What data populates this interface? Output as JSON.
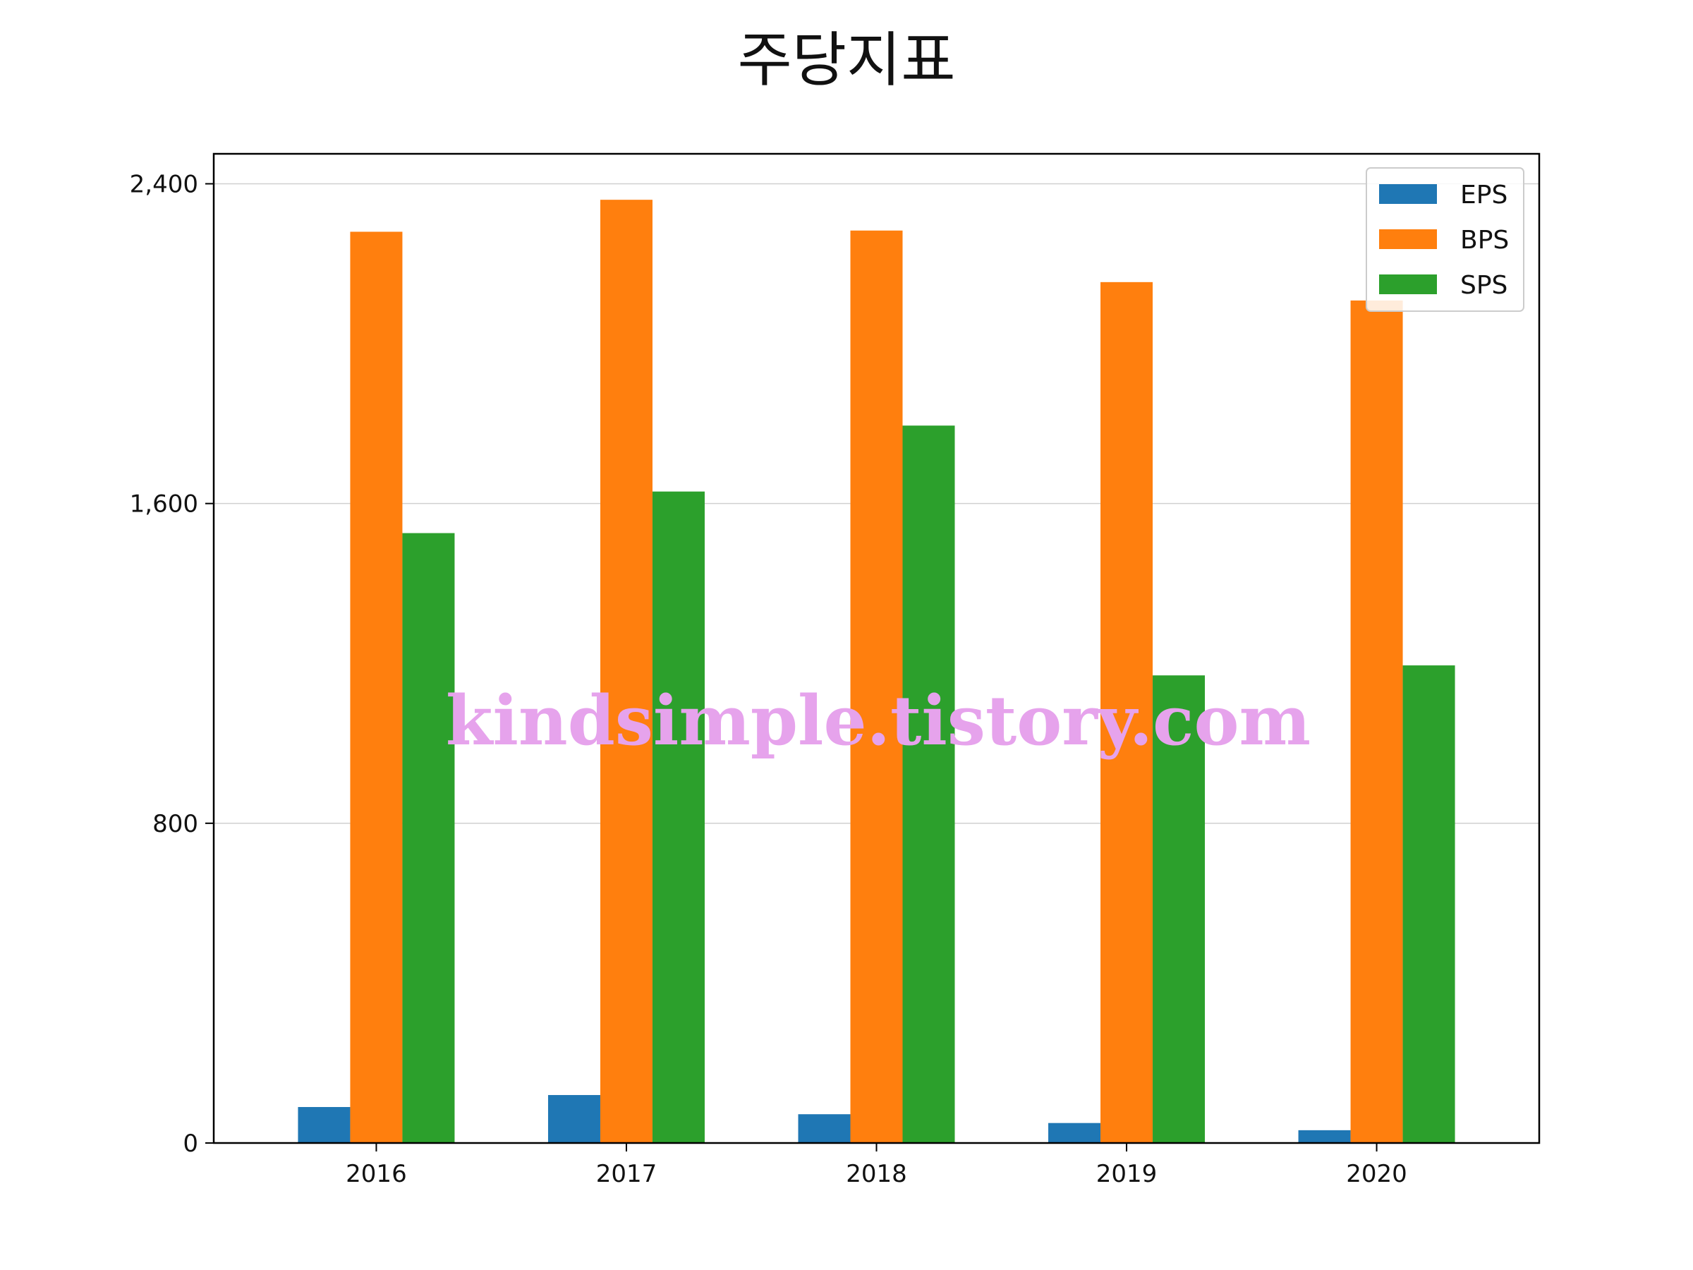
{
  "chart_data": {
    "type": "bar",
    "title": "주당지표",
    "xlabel": "",
    "ylabel": "",
    "categories": [
      "2016",
      "2017",
      "2018",
      "2019",
      "2020"
    ],
    "series": [
      {
        "name": "EPS",
        "color": "#1f77b4",
        "values": [
          90,
          120,
          72,
          50,
          32
        ]
      },
      {
        "name": "BPS",
        "color": "#ff7f0e",
        "values": [
          2280,
          2360,
          2283,
          2154,
          2108
        ]
      },
      {
        "name": "SPS",
        "color": "#2ca02c",
        "values": [
          1526,
          1630,
          1795,
          1170,
          1195
        ]
      }
    ],
    "ylim": [
      0,
      2475
    ],
    "yticks": [
      0,
      800,
      1600,
      2400
    ],
    "ytick_labels": [
      "0",
      "800",
      "1,600",
      "2,400"
    ],
    "grid": "horizontal",
    "legend_position": "top-right"
  },
  "watermark": "kindsimple.tistory.com"
}
